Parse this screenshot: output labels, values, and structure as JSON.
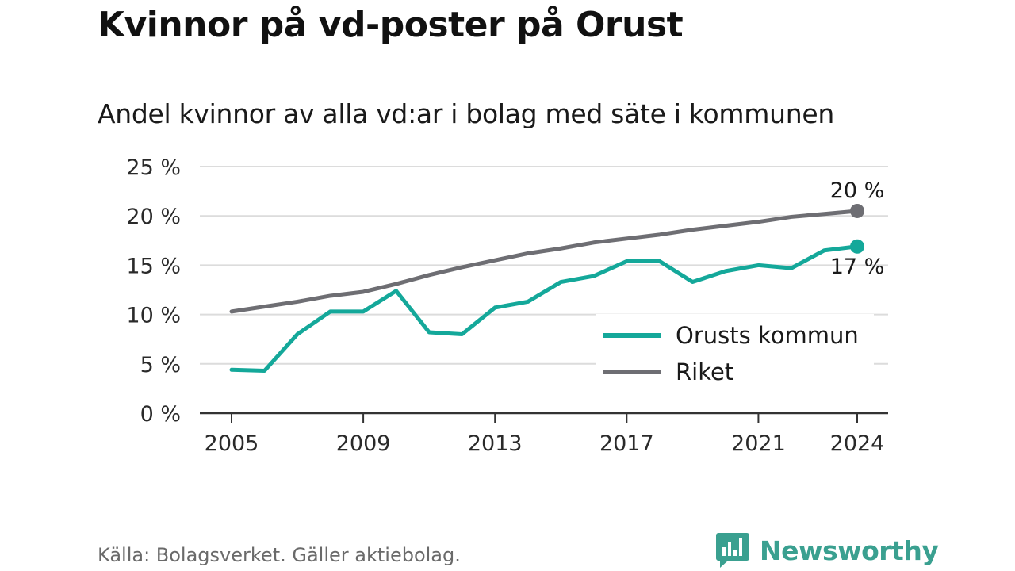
{
  "title": "Kvinnor på vd-poster på Orust",
  "subtitle": "Andel kvinnor av alla vd:ar i bolag med säte i kommunen",
  "footer": "Källa: Bolagsverket. Gäller aktiebolag.",
  "brand": "Newsworthy",
  "chart_data": {
    "type": "line",
    "x": [
      2005,
      2006,
      2007,
      2008,
      2009,
      2010,
      2011,
      2012,
      2013,
      2014,
      2015,
      2016,
      2017,
      2018,
      2019,
      2020,
      2021,
      2022,
      2023,
      2024
    ],
    "x_ticks": [
      2005,
      2009,
      2013,
      2017,
      2021,
      2024
    ],
    "y_ticks": [
      0,
      5,
      10,
      15,
      20,
      25
    ],
    "y_tick_labels": [
      "0 %",
      "5 %",
      "10 %",
      "15 %",
      "20 %",
      "25 %"
    ],
    "ylim": [
      0,
      25
    ],
    "grid": true,
    "legend_position": "bottom-right",
    "series": [
      {
        "name": "Orusts kommun",
        "color": "#14a89a",
        "values": [
          4.4,
          4.3,
          8.0,
          10.3,
          10.3,
          12.4,
          8.2,
          8.0,
          10.7,
          11.3,
          13.3,
          13.9,
          15.4,
          15.4,
          13.3,
          14.4,
          15.0,
          14.7,
          16.5,
          16.9
        ],
        "end_label": "17 %"
      },
      {
        "name": "Riket",
        "color": "#6e6e73",
        "values": [
          10.3,
          10.8,
          11.3,
          11.9,
          12.3,
          13.1,
          14.0,
          14.8,
          15.5,
          16.2,
          16.7,
          17.3,
          17.7,
          18.1,
          18.6,
          19.0,
          19.4,
          19.9,
          20.2,
          20.5
        ],
        "end_label": "20 %"
      }
    ]
  },
  "colors": {
    "grid": "#dcdcdc",
    "axis": "#333333",
    "brand": "#3aa090"
  }
}
